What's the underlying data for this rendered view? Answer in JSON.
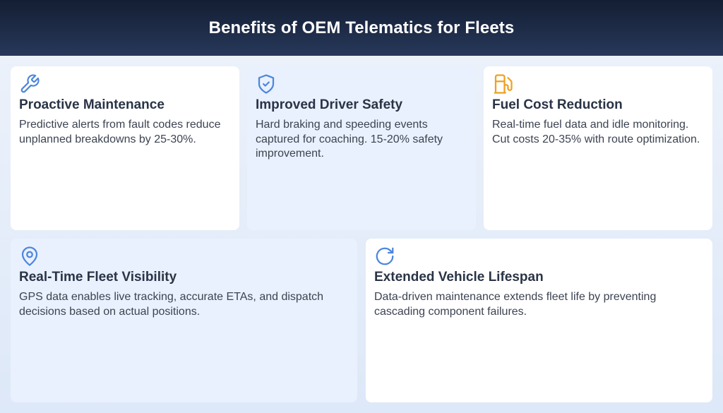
{
  "header": {
    "title": "Benefits of OEM Telematics for Fleets"
  },
  "colors": {
    "icon_blue": "#4d86dc",
    "icon_orange": "#f0a020",
    "header_bg": "#1b2742"
  },
  "cards": [
    {
      "icon": "wrench-icon",
      "title": "Proactive Maintenance",
      "text": "Predictive alerts from fault codes reduce unplanned breakdowns by 25-30%."
    },
    {
      "icon": "shield-check-icon",
      "title": "Improved Driver Safety",
      "text": "Hard braking and speeding events captured for coaching. 15-20% safety improvement."
    },
    {
      "icon": "fuel-pump-icon",
      "title": "Fuel Cost Reduction",
      "text": "Real-time fuel data and idle monitoring. Cut costs 20-35% with route optimization."
    },
    {
      "icon": "map-pin-icon",
      "title": "Real-Time Fleet Visibility",
      "text": "GPS data enables live tracking, accurate ETAs, and dispatch decisions based on actual positions."
    },
    {
      "icon": "refresh-icon",
      "title": "Extended Vehicle Lifespan",
      "text": "Data-driven maintenance extends fleet life by preventing cascading component failures."
    }
  ]
}
